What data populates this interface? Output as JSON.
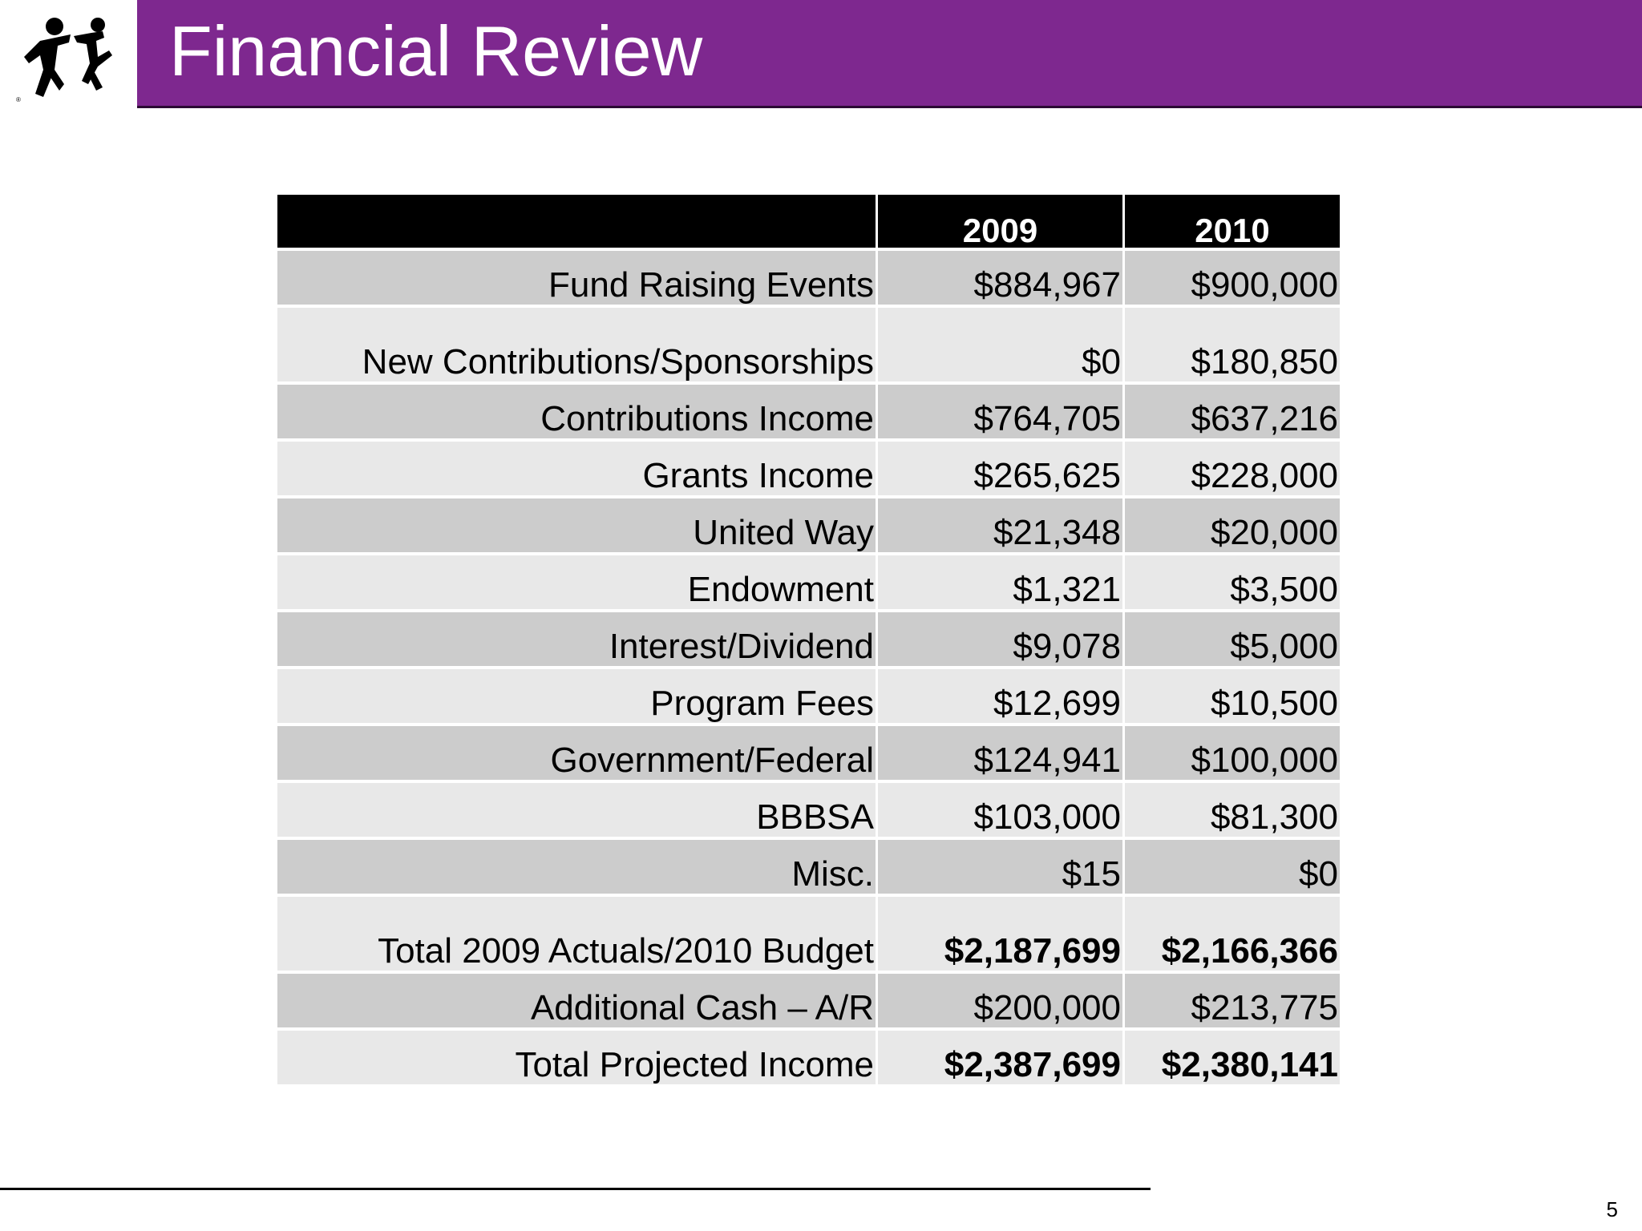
{
  "slide": {
    "title": "Financial Review",
    "page_number": "5",
    "logo_icon": "mentoring-figures-logo-icon"
  },
  "table": {
    "corner_header": "",
    "columns": [
      "2009",
      "2010"
    ],
    "rows": [
      {
        "label": "Fund Raising Events",
        "y2009": "$884,967",
        "y2010": "$900,000",
        "shade": "dark"
      },
      {
        "label": "New Contributions/Sponsorships",
        "y2009": "$0",
        "y2010": "$180,850",
        "shade": "light"
      },
      {
        "label": "Contributions Income",
        "y2009": "$764,705",
        "y2010": "$637,216",
        "shade": "dark"
      },
      {
        "label": "Grants Income",
        "y2009": "$265,625",
        "y2010": "$228,000",
        "shade": "light"
      },
      {
        "label": "United Way",
        "y2009": "$21,348",
        "y2010": "$20,000",
        "shade": "dark"
      },
      {
        "label": "Endowment",
        "y2009": "$1,321",
        "y2010": "$3,500",
        "shade": "light"
      },
      {
        "label": "Interest/Dividend",
        "y2009": "$9,078",
        "y2010": "$5,000",
        "shade": "dark"
      },
      {
        "label": "Program Fees",
        "y2009": "$12,699",
        "y2010": "$10,500",
        "shade": "light"
      },
      {
        "label": "Government/Federal",
        "y2009": "$124,941",
        "y2010": "$100,000",
        "shade": "dark"
      },
      {
        "label": "BBBSA",
        "y2009": "$103,000",
        "y2010": "$81,300",
        "shade": "light"
      },
      {
        "label": "Misc.",
        "y2009": "$15",
        "y2010": "$0",
        "shade": "dark"
      },
      {
        "label": "Total 2009 Actuals/2010 Budget",
        "y2009": "$2,187,699",
        "y2010": "$2,166,366",
        "shade": "light"
      },
      {
        "label": "Additional Cash – A/R",
        "y2009": "$200,000",
        "y2010": "$213,775",
        "shade": "dark"
      },
      {
        "label": "Total Projected Income",
        "y2009": "$2,387,699",
        "y2010": "$2,380,141",
        "shade": "light"
      }
    ]
  },
  "colors": {
    "title_bar": "#7e288f",
    "header_bg": "#000000",
    "row_dark": "#cccccc",
    "row_light": "#e8e8e8"
  }
}
